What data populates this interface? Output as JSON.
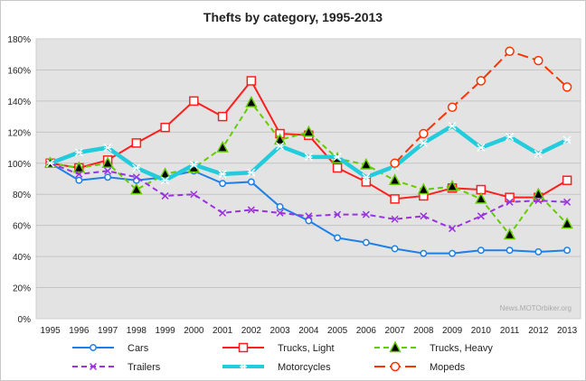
{
  "chart_data": {
    "type": "line",
    "title": "Thefts by category, 1995-2013",
    "xlabel": "",
    "ylabel": "",
    "ylim": [
      0,
      180
    ],
    "yticks": [
      "0%",
      "20%",
      "40%",
      "60%",
      "80%",
      "100%",
      "120%",
      "140%",
      "160%",
      "180%"
    ],
    "grid": true,
    "legend_position": "bottom",
    "x": [
      "1995",
      "1996",
      "1997",
      "1998",
      "1999",
      "2000",
      "2001",
      "2002",
      "2003",
      "2004",
      "2005",
      "2006",
      "2007",
      "2008",
      "2009",
      "2010",
      "2011",
      "2012",
      "2013"
    ],
    "series": [
      {
        "name": "Cars",
        "color": "#1e7fe6",
        "dash": "solid",
        "marker": "diamond",
        "values": [
          100,
          89,
          91,
          89,
          91,
          95,
          87,
          88,
          72,
          63,
          52,
          49,
          45,
          42,
          42,
          44,
          44,
          43,
          44
        ]
      },
      {
        "name": "Trucks, Light",
        "color": "#ff1e1e",
        "dash": "solid",
        "marker": "square",
        "values": [
          100,
          97,
          102,
          113,
          123,
          140,
          130,
          153,
          119,
          118,
          97,
          88,
          77,
          79,
          84,
          83,
          78,
          78,
          89
        ]
      },
      {
        "name": "Trucks, Heavy",
        "color": "#66cc00",
        "dash": "dashed",
        "marker": "triangle",
        "values": [
          100,
          97,
          100,
          83,
          93,
          97,
          110,
          139,
          115,
          120,
          103,
          99,
          89,
          83,
          85,
          77,
          54,
          80,
          61
        ]
      },
      {
        "name": "Trailers",
        "color": "#9933dd",
        "dash": "dashed",
        "marker": "x",
        "values": [
          100,
          93,
          95,
          91,
          79,
          80,
          68,
          70,
          68,
          66,
          67,
          67,
          64,
          66,
          58,
          66,
          75,
          76,
          75
        ]
      },
      {
        "name": "Motorcycles",
        "color": "#22ccdd",
        "dash": "solid",
        "marker": "star",
        "values": [
          100,
          107,
          110,
          97,
          89,
          99,
          93,
          94,
          111,
          104,
          104,
          91,
          98,
          113,
          124,
          110,
          117,
          106,
          115
        ]
      },
      {
        "name": "Mopeds",
        "color": "#ff3300",
        "dash": "longdash",
        "marker": "circle",
        "values": [
          null,
          null,
          null,
          null,
          null,
          null,
          null,
          null,
          null,
          null,
          null,
          null,
          100,
          119,
          136,
          153,
          172,
          166,
          149
        ]
      }
    ],
    "watermark": "News.MOTOrbiker.org"
  }
}
